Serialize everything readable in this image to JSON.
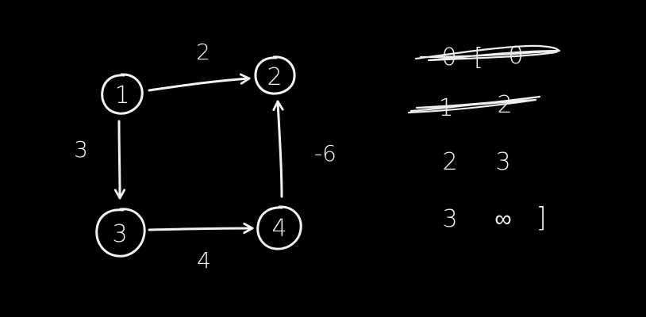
{
  "diagram": {
    "nodes": [
      {
        "id": "1",
        "label": "1"
      },
      {
        "id": "2",
        "label": "2"
      },
      {
        "id": "3",
        "label": "3"
      },
      {
        "id": "4",
        "label": "4"
      }
    ],
    "edges": [
      {
        "from": "1",
        "to": "2",
        "weight": "2"
      },
      {
        "from": "1",
        "to": "3",
        "weight": "3"
      },
      {
        "from": "3",
        "to": "4",
        "weight": "4"
      },
      {
        "from": "4",
        "to": "2",
        "weight": "-6"
      }
    ]
  },
  "notes": {
    "scribbled_row_1": [
      "0",
      "[",
      "0"
    ],
    "scribbled_row_2": [
      "1",
      "2"
    ],
    "rows": [
      {
        "node": "2",
        "value": "3"
      },
      {
        "node": "3",
        "value": "∞"
      }
    ],
    "closing_bracket": "]"
  }
}
